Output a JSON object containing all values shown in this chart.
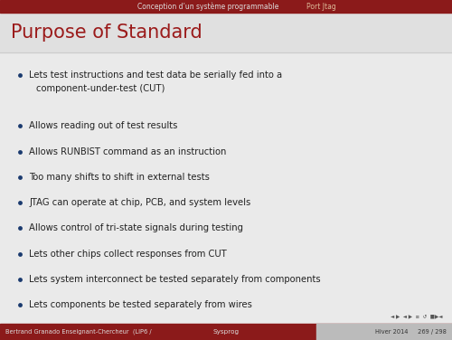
{
  "title": "Purpose of Standard",
  "title_color": "#9B1B1B",
  "bg_color": "#EAEAEA",
  "header_bg": "#8B1A1A",
  "header_text1": "Conception d’un système programmable",
  "header_text2": "Port Jtag",
  "header_text1_color": "#DDDDDD",
  "header_text2_color": "#DDBB99",
  "bullet_color": "#1a3a6e",
  "bullet_points": [
    [
      "Lets test instructions and test data be serially fed into a",
      "component-under-test (CUT)"
    ],
    [
      "Allows reading out of test results"
    ],
    [
      "Allows RUNBIST command as an instruction"
    ],
    [
      "Too many shifts to shift in external tests"
    ],
    [
      "JTAG can operate at chip, PCB, and system levels"
    ],
    [
      "Allows control of tri-state signals during testing"
    ],
    [
      "Lets other chips collect responses from CUT"
    ],
    [
      "Lets system interconnect be tested separately from components"
    ],
    [
      "Lets components be tested separately from wires"
    ]
  ],
  "footer_left": "Bertrand Granado Enseignant-Chercheur  (LIP6 /",
  "footer_center": "Sysprog",
  "footer_right": "Hiver 2014     269 / 298",
  "footer_bg": "#8B1A1A",
  "footer_text_color": "#DDDDDD",
  "footer_right_bg": "#BBBBBB",
  "text_color": "#222222",
  "separator_color": "#CCCCCC",
  "title_bg_color": "#E0E0E0",
  "nav_color": "#555555"
}
